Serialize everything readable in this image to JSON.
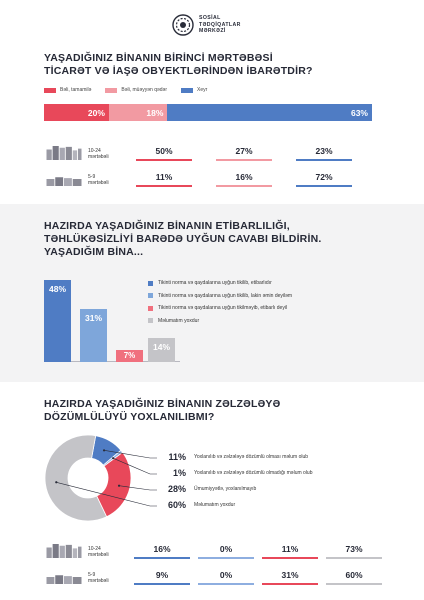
{
  "logo": {
    "line1": "SOSİAL",
    "line2": "TƏDQİQATLAR",
    "line3": "MƏRKƏZİ"
  },
  "q1": {
    "title_l1": "YAŞADIĞINIZ BİNANIN BİRİNCİ MƏRTƏBƏSİ",
    "title_l2": "TİCARƏT VƏ İAŞƏ OBYEKTLƏRİNDƏN İBARƏTDİR?",
    "legend": [
      "Bəli, tamamilə",
      "Bəli, müəyyən qədər",
      "Xeyr"
    ],
    "colors": [
      "#e8485a",
      "#f29aa2",
      "#4f7cc4"
    ],
    "overall": {
      "values": [
        20,
        18,
        63
      ],
      "labels": [
        "20%",
        "18%",
        "63%"
      ]
    },
    "rows": [
      {
        "label_l1": "10-24",
        "label_l2": "mərtəbəli",
        "icon": "tall-building-icon",
        "labels": [
          "50%",
          "27%",
          "23%"
        ]
      },
      {
        "label_l1": "5-9",
        "label_l2": "mərtəbəli",
        "icon": "low-building-icon",
        "labels": [
          "11%",
          "16%",
          "72%"
        ]
      }
    ]
  },
  "q2": {
    "title_l1": "HAZIRDA YAŞADIĞINIZ BİNANIN ETİBARLILIĞI,",
    "title_l2": "TƏHLÜKƏSİZLİYİ BARƏDƏ UYĞUN CAVABI BİLDİRİN.",
    "title_l3": "YAŞADIĞIM BİNA...",
    "legend": [
      "Tikinti norma və qaydalarına uyğun tikilib, etibarlıdır",
      "Tikinti norma və qaydalarına uyğun tikilib, lakin əmin deyiləm",
      "Tikinti norma və qaydalarına uyğun tikilməyib, etibarlı deyil",
      "Məlumatım yoxdur"
    ],
    "colors": [
      "#4f7cc4",
      "#7ea6da",
      "#f0707e",
      "#c4c4c8"
    ],
    "values": [
      48,
      31,
      7,
      14
    ],
    "labels": [
      "48%",
      "31%",
      "7%",
      "14%"
    ]
  },
  "q3": {
    "title_l1": "HAZIRDA YAŞADIĞINIZ BİNANIN ZƏLZƏLƏYƏ",
    "title_l2": "DÖZÜMLÜLÜYÜ YOXLANILIBMI?",
    "legend": [
      "Yoxlanılıb və zəlzələyə dözümlü olması məlum olub",
      "Yoxlanılıb və zəlzələyə dözümlü olmadığı məlum olub",
      "Ümumiyyətlə, yoxlanılmayıb",
      "Məlumatım yoxdur"
    ],
    "colors": [
      "#4f7cc4",
      "#8eaee0",
      "#e8485a",
      "#c4c4c8"
    ],
    "values": [
      11,
      1,
      28,
      60
    ],
    "labels": [
      "11%",
      "1%",
      "28%",
      "60%"
    ],
    "rows": [
      {
        "label_l1": "10-24",
        "label_l2": "mərtəbəli",
        "icon": "tall-building-icon",
        "labels": [
          "16%",
          "0%",
          "11%",
          "73%"
        ]
      },
      {
        "label_l1": "5-9",
        "label_l2": "mərtəbəli",
        "icon": "low-building-icon",
        "labels": [
          "9%",
          "0%",
          "31%",
          "60%"
        ]
      }
    ]
  },
  "chart_data": [
    {
      "type": "bar",
      "stacked": true,
      "orientation": "horizontal",
      "title": "YAŞADIĞINIZ BİNANIN BİRİNCİ MƏRTƏBƏSİ TİCARƏT VƏ İAŞƏ OBYEKTLƏRİNDƏN İBARƏTDİR?",
      "categories": [
        "",
        "10-24 mərtəbəli",
        "5-9 mərtəbəli"
      ],
      "series": [
        {
          "name": "Bəli, tamamilə",
          "values": [
            20,
            50,
            11
          ]
        },
        {
          "name": "Bəli, müəyyən qədər",
          "values": [
            18,
            27,
            16
          ]
        },
        {
          "name": "Xeyr",
          "values": [
            63,
            23,
            72
          ]
        }
      ],
      "legend": "top"
    },
    {
      "type": "bar",
      "title": "HAZIRDA YAŞADIĞINIZ BİNANIN ETİBARLILIĞI, TƏHLÜKƏSİZLİYİ BARƏDƏ UYĞUN CAVABI BİLDİRİN. YAŞADIĞIM BİNA...",
      "categories": [
        "Tikinti norma və qaydalarına uyğun tikilib, etibarlıdır",
        "Tikinti norma və qaydalarına uyğun tikilib, lakin əmin deyiləm",
        "Tikinti norma və qaydalarına uyğun tikilməyib, etibarlı deyil",
        "Məlumatım yoxdur"
      ],
      "values": [
        48,
        31,
        7,
        14
      ],
      "legend": "right"
    },
    {
      "type": "pie",
      "donut": true,
      "title": "HAZIRDA YAŞADIĞINIZ BİNANIN ZƏLZƏLƏYƏ DÖZÜMLÜLÜYÜ YOXLANILIBMI?",
      "categories": [
        "Yoxlanılıb və zəlzələyə dözümlü olması məlum olub",
        "Yoxlanılıb və zəlzələyə dözümlü olmadığı məlum olub",
        "Ümumiyyətlə, yoxlanılmayıb",
        "Məlumatım yoxdur"
      ],
      "values": [
        11,
        1,
        28,
        60
      ],
      "legend": "right"
    },
    {
      "type": "table",
      "columns": [
        "Yoxlanılıb və zəlzələyə dözümlü olması məlum olub",
        "Yoxlanılıb və zəlzələyə dözümlü olmadığı məlum olub",
        "Ümumiyyətlə, yoxlanılmayıb",
        "Məlumatım yoxdur"
      ],
      "rows": [
        {
          "name": "10-24 mərtəbəli",
          "values": [
            16,
            0,
            11,
            73
          ]
        },
        {
          "name": "5-9 mərtəbəli",
          "values": [
            9,
            0,
            31,
            60
          ]
        }
      ]
    }
  ]
}
